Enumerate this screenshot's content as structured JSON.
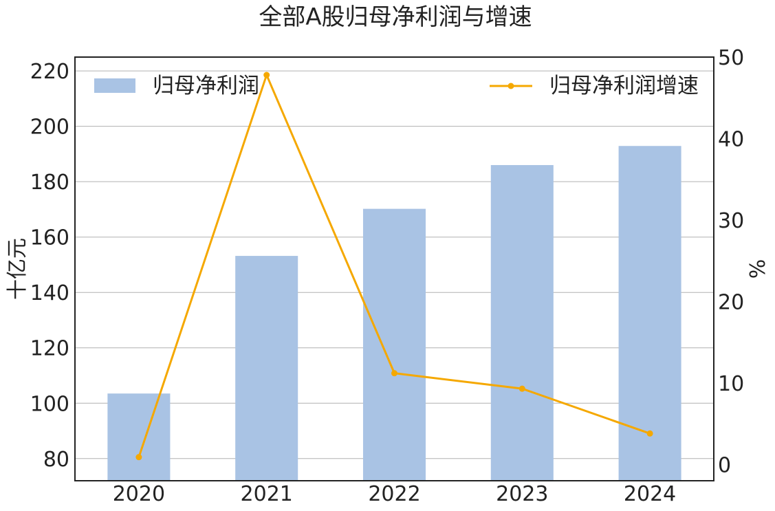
{
  "chart_data": {
    "type": "bar",
    "title": "全部A股归母净利润与增速",
    "categories": [
      "2020",
      "2021",
      "2022",
      "2023",
      "2024"
    ],
    "series": [
      {
        "name": "归母净利润",
        "type": "bar",
        "axis": "left",
        "color": "#a9c3e4",
        "values": [
          103.5,
          153.2,
          170.2,
          186.0,
          192.9
        ]
      },
      {
        "name": "归母净利润增速",
        "type": "line",
        "axis": "right",
        "color": "#f5a800",
        "values": [
          0.9,
          47.8,
          11.2,
          9.3,
          3.8
        ]
      }
    ],
    "ylabel": "十亿元",
    "y2label": "%",
    "ylim": [
      72,
      225
    ],
    "y2lim": [
      -2,
      50
    ],
    "yticks": [
      80,
      100,
      120,
      140,
      160,
      180,
      200,
      220
    ],
    "y2ticks": [
      0,
      10,
      20,
      30,
      40,
      50
    ],
    "grid": true,
    "legend": [
      "upper-left",
      "upper-right"
    ]
  }
}
